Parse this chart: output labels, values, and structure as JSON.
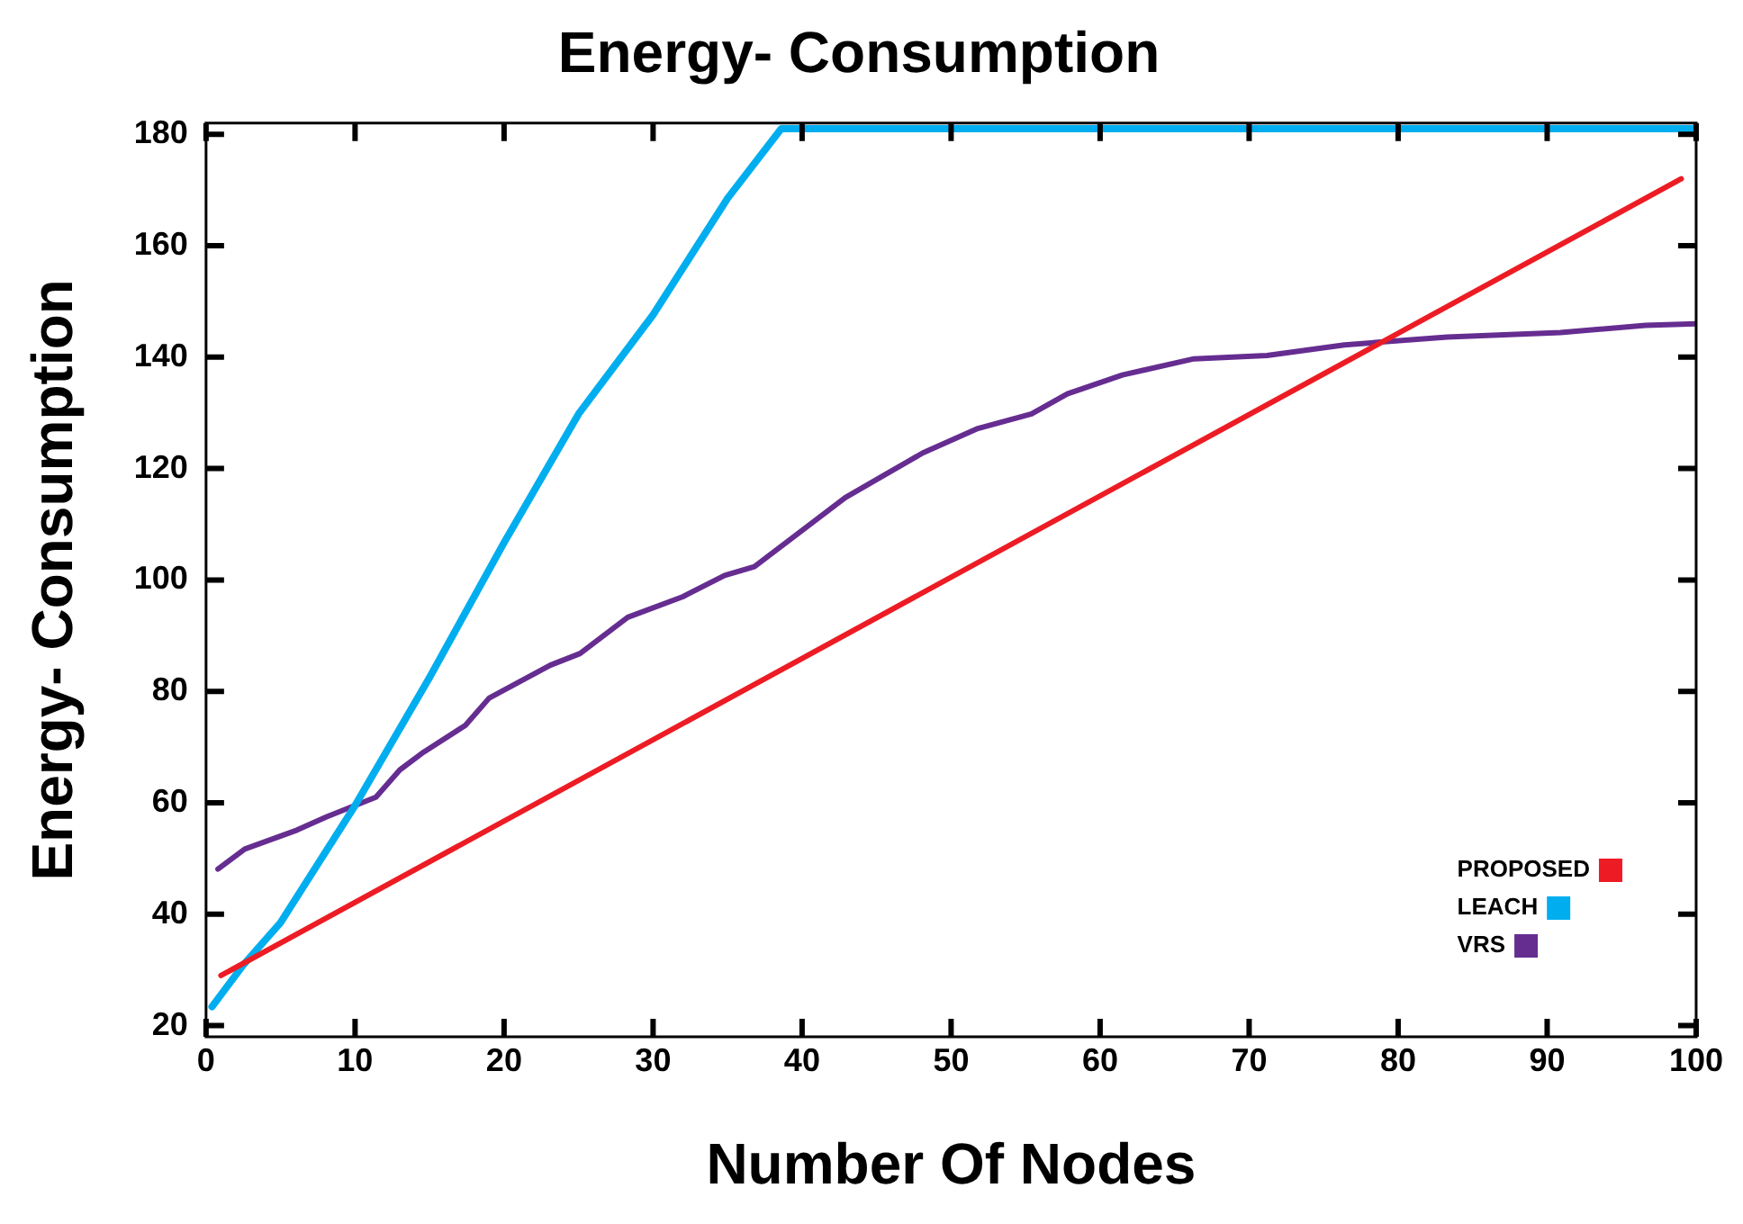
{
  "chart_data": {
    "type": "line",
    "title": "Energy- Consumption",
    "xlabel": "Number Of Nodes",
    "ylabel": "Energy- Consumption",
    "xlim": [
      0,
      100
    ],
    "xticks": [
      0,
      10,
      20,
      30,
      40,
      50,
      60,
      70,
      80,
      90,
      100
    ],
    "ylim": [
      18,
      182
    ],
    "yticks": [
      20,
      40,
      60,
      80,
      100,
      120,
      140,
      160,
      180
    ],
    "grid": false,
    "legend": "bottom right",
    "marker": "none",
    "line_style": "solid",
    "series": [
      {
        "name": "PROPOSED",
        "color": "#ed1c24",
        "x": [
          1,
          99
        ],
        "values": [
          29,
          172
        ]
      },
      {
        "name": "LEACH",
        "color": "#00aeef",
        "x": [
          0.4,
          2.5,
          5,
          10,
          15,
          20,
          25,
          30,
          35,
          38.6,
          100
        ],
        "values": [
          23.4,
          30.9,
          38.5,
          59.5,
          82.5,
          106.7,
          129.8,
          147.6,
          168.5,
          181,
          181
        ]
      },
      {
        "name": "VRS",
        "color": "#662d91",
        "x": [
          0.8,
          2.6,
          6.1,
          8.1,
          11.4,
          13,
          14.6,
          17.4,
          19,
          23.1,
          25.1,
          28.3,
          32,
          34.8,
          36.8,
          40,
          42.9,
          45.7,
          48.1,
          51.8,
          55.4,
          57.8,
          61.5,
          66.3,
          71.2,
          76.4,
          83.3,
          90.9,
          96.6,
          100
        ],
        "values": [
          48.1,
          51.7,
          55.1,
          57.5,
          61,
          65.9,
          69.1,
          73.9,
          78.8,
          84.7,
          86.8,
          93.3,
          97,
          100.8,
          102.4,
          108.9,
          114.8,
          119.1,
          122.8,
          127.2,
          129.8,
          133.4,
          136.8,
          139.7,
          140.3,
          142.2,
          143.6,
          144.4,
          145.7,
          146
        ]
      }
    ]
  }
}
